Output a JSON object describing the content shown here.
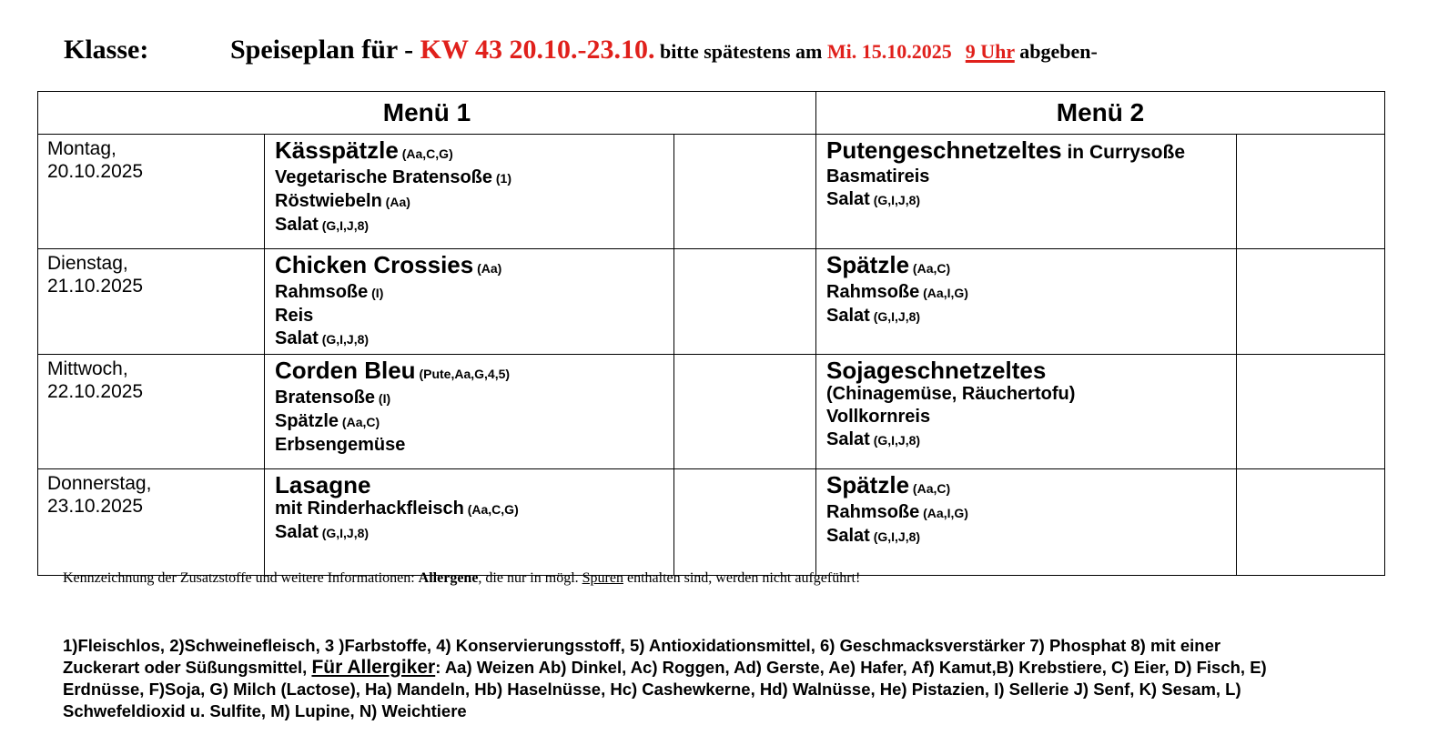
{
  "header": {
    "klasse": "Klasse:",
    "prefix": "Speiseplan für - ",
    "week": "KW 43 20.10.-23.10.",
    "mid": " bitte spätestens am ",
    "deadline_date": "Mi. 15.10.2025",
    "deadline_time": "9 Uhr",
    "suffix": " abgeben-",
    "accent_color": "#e0201b"
  },
  "table": {
    "menu1_label": "Menü 1",
    "menu2_label": "Menü 2",
    "days": [
      {
        "day": "Montag,",
        "date": "20.10.2025",
        "menu1": [
          {
            "text": "Kässpätzle",
            "note": " (Aa,C,G)"
          },
          {
            "text": "Vegetarische Bratensoße",
            "note": " (1)"
          },
          {
            "text": "Röstwiebeln",
            "note": " (Aa)"
          },
          {
            "text": "Salat",
            "note": " (G,I,J,8)"
          }
        ],
        "menu2": [
          {
            "text": "Putengeschnetzeltes",
            "suffix": " in Currysoße"
          },
          {
            "text": "Basmatireis"
          },
          {
            "text": "Salat",
            "note": " (G,I,J,8)"
          }
        ]
      },
      {
        "day": "Dienstag,",
        "date": "21.10.2025",
        "menu1": [
          {
            "text": "Chicken Crossies",
            "note": " (Aa)"
          },
          {
            "text": "Rahmsoße",
            "note": " (I)"
          },
          {
            "text": "Reis"
          },
          {
            "text": "Salat",
            "note": " (G,I,J,8)"
          }
        ],
        "menu2": [
          {
            "text": "Spätzle",
            "note": " (Aa,C)"
          },
          {
            "text": "Rahmsoße",
            "note": " (Aa,I,G)"
          },
          {
            "text": "Salat",
            "note": " (G,I,J,8)"
          }
        ]
      },
      {
        "day": "Mittwoch,",
        "date": "22.10.2025",
        "menu1": [
          {
            "text": "Corden Bleu",
            "note": " (Pute,Aa,G,4,5)"
          },
          {
            "text": "Bratensoße",
            "note": " (I)"
          },
          {
            "text": "Spätzle",
            "note": " (Aa,C)"
          },
          {
            "text": "Erbsengemüse"
          }
        ],
        "menu2": [
          {
            "text": "Sojageschnetzeltes"
          },
          {
            "text": "(Chinagemüse, Räuchertofu)"
          },
          {
            "text": "Vollkornreis"
          },
          {
            "text": "Salat",
            "note": " (G,I,J,8)"
          }
        ]
      },
      {
        "day": "Donnerstag,",
        "date": "23.10.2025",
        "menu1": [
          {
            "text": "Lasagne"
          },
          {
            "text": "mit Rinderhackfleisch",
            "note": " (Aa,C,G)"
          },
          {
            "text": "Salat",
            "note": " (G,I,J,8)"
          }
        ],
        "menu2": [
          {
            "text": "Spätzle",
            "note": " (Aa,C)"
          },
          {
            "text": "Rahmsoße",
            "note": " (Aa,I,G)"
          },
          {
            "text": "Salat",
            "note": " (G,I,J,8)"
          }
        ]
      }
    ]
  },
  "footer": {
    "info_a": "Kennzeichnung der Zusatzstoffe und weitere Informationen: ",
    "info_b": "Allergene",
    "info_c": ", die nur in mögl. ",
    "info_d": "Spuren",
    "info_e": " enthalten sind, werden nicht aufgeführt!",
    "legend_a": "1)Fleischlos, 2)Schweinefleisch, 3 )Farbstoffe, 4) Konservierungsstoff, 5) Antioxidationsmittel, 6) Geschmacksverstärker 7) Phosphat 8) mit einer Zuckerart oder Süßungsmittel, ",
    "legend_allergiker": "Für Allergiker",
    "legend_b": ": Aa) Weizen Ab) Dinkel, Ac) Roggen, Ad) Gerste, Ae) Hafer, Af) Kamut,B) Krebstiere, C) Eier, D) Fisch, E) Erdnüsse, F)Soja, G) Milch (Lactose), Ha) Mandeln, Hb) Haselnüsse, Hc) Cashewkerne, Hd) Walnüsse, He) Pistazien, I) Sellerie J) Senf, K) Sesam, L) Schwefeldioxid u. Sulfite, M) Lupine, N) Weichtiere"
  }
}
